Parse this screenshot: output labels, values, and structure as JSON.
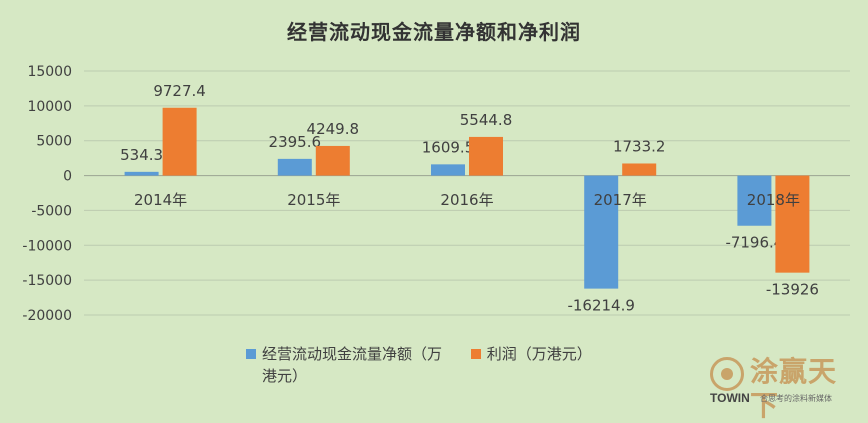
{
  "chart_data": {
    "type": "bar",
    "title": "经营流动现金流量净额和净利润",
    "categories": [
      "2014年",
      "2015年",
      "2016年",
      "2017年",
      "2018年"
    ],
    "series": [
      {
        "name": "经营流动现金流量净额（万港元）",
        "color": "#5b9bd5",
        "values": [
          534.3,
          2395.6,
          1609.5,
          -16214.9,
          -7196.4
        ],
        "labels": [
          "534.3",
          "2395.6",
          "1609.5",
          "-16214.9",
          "-7196.4"
        ]
      },
      {
        "name": "利润（万港元）",
        "color": "#ed7d31",
        "values": [
          9727.4,
          4249.8,
          5544.8,
          1733.2,
          -13926
        ],
        "labels": [
          "9727.4",
          "4249.8",
          "5544.8",
          "1733.2",
          "-13926"
        ]
      }
    ],
    "ylim": [
      -20000,
      15000
    ],
    "yticks": [
      15000,
      10000,
      5000,
      0,
      -5000,
      -10000,
      -15000,
      -20000
    ],
    "ytick_labels": [
      "15000",
      "10000",
      "5000",
      "0",
      "-5000",
      "-10000",
      "-15000",
      "-20000"
    ],
    "grid": true,
    "legend_position": "bottom",
    "xlabel": "",
    "ylabel": ""
  },
  "legend": {
    "series_a": "经营流动现金流量净额（万港元）",
    "series_b": "利润（万港元）"
  },
  "watermark": {
    "title": "涂赢天下",
    "brand": "TOWIN",
    "tagline": "合思考的涂料新媒体"
  }
}
